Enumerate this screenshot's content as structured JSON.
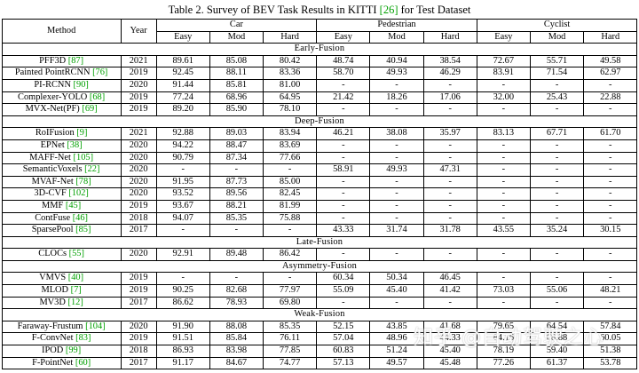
{
  "title": {
    "text_before": "Table 2. Survey of BEV Task Results in KITTI ",
    "citation": "[26]",
    "text_after": " for Test Dataset"
  },
  "header": {
    "method": "Method",
    "year": "Year",
    "groups": [
      "Car",
      "Pedestrian",
      "Cyclist"
    ],
    "subcols": [
      "Easy",
      "Mod",
      "Hard"
    ]
  },
  "sections": [
    {
      "label": "Early-Fusion",
      "rows": [
        {
          "method": "PFF3D",
          "cite": "[87]",
          "year": "2021",
          "values": [
            "89.61",
            "85.08",
            "80.42",
            "48.74",
            "40.94",
            "38.54",
            "72.67",
            "55.71",
            "49.58"
          ]
        },
        {
          "method": "Painted PointRCNN",
          "cite": "[76]",
          "year": "2019",
          "values": [
            "92.45",
            "88.11",
            "83.36",
            "58.70",
            "49.93",
            "46.29",
            "83.91",
            "71.54",
            "62.97"
          ]
        },
        {
          "method": "PI-RCNN",
          "cite": "[90]",
          "year": "2020",
          "values": [
            "91.44",
            "85.81",
            "81.00",
            "-",
            "-",
            "-",
            "-",
            "-",
            "-"
          ]
        },
        {
          "method": "Complexer-YOLO",
          "cite": "[68]",
          "year": "2019",
          "values": [
            "77.24",
            "68.96",
            "64.95",
            "21.42",
            "18.26",
            "17.06",
            "32.00",
            "25.43",
            "22.88"
          ]
        },
        {
          "method": "MVX-Net(PF)",
          "cite": "[69]",
          "year": "2019",
          "values": [
            "89.20",
            "85.90",
            "78.10",
            "-",
            "-",
            "-",
            "-",
            "-",
            "-"
          ]
        }
      ]
    },
    {
      "label": "Deep-Fusion",
      "rows": [
        {
          "method": "RoIFusion",
          "cite": "[9]",
          "year": "2021",
          "values": [
            "92.88",
            "89.03",
            "83.94",
            "46.21",
            "38.08",
            "35.97",
            "83.13",
            "67.71",
            "61.70"
          ]
        },
        {
          "method": "EPNet",
          "cite": "[38]",
          "year": "2020",
          "values": [
            "94.22",
            "88.47",
            "83.69",
            "-",
            "-",
            "-",
            "-",
            "-",
            "-"
          ]
        },
        {
          "method": "MAFF-Net",
          "cite": "[105]",
          "year": "2020",
          "values": [
            "90.79",
            "87.34",
            "77.66",
            "-",
            "-",
            "-",
            "-",
            "-",
            "-"
          ]
        },
        {
          "method": "SemanticVoxels",
          "cite": "[22]",
          "year": "2020",
          "values": [
            "-",
            "-",
            "-",
            "58.91",
            "49.93",
            "47.31",
            "-",
            "-",
            "-"
          ]
        },
        {
          "method": "MVAF-Net",
          "cite": "[78]",
          "year": "2020",
          "values": [
            "91.95",
            "87.73",
            "85.00",
            "-",
            "-",
            "-",
            "-",
            "-",
            "-"
          ]
        },
        {
          "method": "3D-CVF",
          "cite": "[102]",
          "year": "2020",
          "values": [
            "93.52",
            "89.56",
            "82.45",
            "-",
            "-",
            "-",
            "-",
            "-",
            "-"
          ]
        },
        {
          "method": "MMF",
          "cite": "[45]",
          "year": "2019",
          "values": [
            "93.67",
            "88.21",
            "81.99",
            "-",
            "-",
            "-",
            "-",
            "-",
            "-"
          ]
        },
        {
          "method": "ContFuse",
          "cite": "[46]",
          "year": "2018",
          "values": [
            "94.07",
            "85.35",
            "75.88",
            "-",
            "-",
            "-",
            "-",
            "-",
            "-"
          ]
        },
        {
          "method": "SparsePool",
          "cite": "[85]",
          "year": "2017",
          "values": [
            "-",
            "-",
            "-",
            "43.33",
            "31.74",
            "31.78",
            "43.55",
            "35.24",
            "30.15"
          ]
        }
      ]
    },
    {
      "label": "Late-Fusion",
      "rows": [
        {
          "method": "CLOCs",
          "cite": "[55]",
          "year": "2020",
          "values": [
            "92.91",
            "89.48",
            "86.42",
            "-",
            "-",
            "-",
            "-",
            "-",
            "-"
          ]
        }
      ]
    },
    {
      "label": "Asymmetry-Fusion",
      "rows": [
        {
          "method": "VMVS",
          "cite": "[40]",
          "year": "2019",
          "values": [
            "-",
            "-",
            "-",
            "60.34",
            "50.34",
            "46.45",
            "-",
            "-",
            "-"
          ]
        },
        {
          "method": "MLOD",
          "cite": "[7]",
          "year": "2019",
          "values": [
            "90.25",
            "82.68",
            "77.97",
            "55.09",
            "45.40",
            "41.42",
            "73.03",
            "55.06",
            "48.21"
          ]
        },
        {
          "method": "MV3D",
          "cite": "[12]",
          "year": "2017",
          "values": [
            "86.62",
            "78.93",
            "69.80",
            "-",
            "-",
            "-",
            "-",
            "-",
            "-"
          ]
        }
      ]
    },
    {
      "label": "Weak-Fusion",
      "rows": [
        {
          "method": "Faraway-Frustum",
          "cite": "[104]",
          "year": "2020",
          "values": [
            "91.90",
            "88.08",
            "85.35",
            "52.15",
            "43.85",
            "41.68",
            "79.65",
            "64.54",
            "57.84"
          ]
        },
        {
          "method": "F-ConvNet",
          "cite": "[83]",
          "year": "2019",
          "values": [
            "91.51",
            "85.84",
            "76.11",
            "57.04",
            "48.96",
            "44.33",
            "84.16",
            "68.88",
            "60.05"
          ]
        },
        {
          "method": "IPOD",
          "cite": "[99]",
          "year": "2018",
          "values": [
            "86.93",
            "83.98",
            "77.85",
            "60.83",
            "51.24",
            "45.40",
            "78.19",
            "59.40",
            "51.38"
          ]
        },
        {
          "method": "F-PointNet",
          "cite": "[60]",
          "year": "2017",
          "values": [
            "91.17",
            "84.67",
            "74.77",
            "57.13",
            "49.57",
            "45.48",
            "77.26",
            "61.37",
            "53.78"
          ]
        }
      ]
    }
  ],
  "watermark": "知乎 @自动驾驶之心",
  "colors": {
    "citation_green": "#00a000"
  }
}
